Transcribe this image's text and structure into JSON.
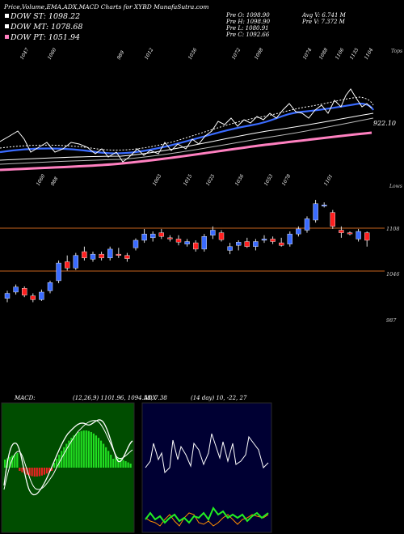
{
  "header": {
    "title": "Price,Volume,EMA,ADX,MACD Charts for XYBD MunafaSutra.com",
    "legend": [
      {
        "label": "DOW ST: 1098.22",
        "color": "#ffffff"
      },
      {
        "label": "DOW MT: 1078.68",
        "color": "#ffffff"
      },
      {
        "label": "DOW PT: 1051.94",
        "color": "#ff80c0"
      }
    ],
    "ohlc": [
      "Pre  O: 1098.90",
      "Pre  H: 1098.90",
      "Pre  L: 1080.91",
      "Pre  C: 1092.66"
    ],
    "stats": [
      "Avg V: 6.741  M",
      "Pre  V: 7.372  M"
    ]
  },
  "ema_panel": {
    "top_label": "Tops",
    "bottom_label": "Lows",
    "value_label": "922.10",
    "top_ticks": [
      "1047",
      "1060",
      "989",
      "1012",
      "1036",
      "1072",
      "1098",
      "1074",
      "1088",
      "1106",
      "1135",
      "1104"
    ],
    "low_ticks": [
      "1060",
      "988",
      "1003",
      "1015",
      "1025",
      "1036",
      "1053",
      "1078",
      "1101"
    ]
  },
  "price_panel": {
    "levels": [
      "1108",
      "1046",
      "987"
    ]
  },
  "macd_panel": {
    "title": "MACD:",
    "values": "(12,26,9) 1101.96,  1094.58,  7.38"
  },
  "adx_panel": {
    "title": "ADX",
    "values": "(14  day) 10,  -22,  27"
  },
  "colors": {
    "up": "#3a6bff",
    "down": "#ff2020",
    "ema_short": "#3a6bff",
    "ema_long": "#ff80c0",
    "level_line": "#c8641e",
    "macd_bg": "#004d00",
    "adx_bg": "#000033",
    "macd_hist_up": "#22dd22",
    "macd_hist_down": "#ee2222"
  },
  "chart_data": {
    "type": "candlestick",
    "candles": [
      {
        "o": 1000,
        "h": 1012,
        "l": 994,
        "c": 1008
      },
      {
        "o": 1010,
        "h": 1022,
        "l": 1006,
        "c": 1018
      },
      {
        "o": 1016,
        "h": 1019,
        "l": 1002,
        "c": 1005
      },
      {
        "o": 1004,
        "h": 1008,
        "l": 994,
        "c": 998
      },
      {
        "o": 998,
        "h": 1014,
        "l": 996,
        "c": 1010
      },
      {
        "o": 1012,
        "h": 1028,
        "l": 1008,
        "c": 1025
      },
      {
        "o": 1028,
        "h": 1060,
        "l": 1024,
        "c": 1056
      },
      {
        "o": 1058,
        "h": 1068,
        "l": 1044,
        "c": 1048
      },
      {
        "o": 1048,
        "h": 1072,
        "l": 1045,
        "c": 1068
      },
      {
        "o": 1074,
        "h": 1082,
        "l": 1060,
        "c": 1064
      },
      {
        "o": 1062,
        "h": 1074,
        "l": 1058,
        "c": 1070
      },
      {
        "o": 1070,
        "h": 1074,
        "l": 1060,
        "c": 1064
      },
      {
        "o": 1064,
        "h": 1082,
        "l": 1060,
        "c": 1078
      },
      {
        "o": 1070,
        "h": 1080,
        "l": 1064,
        "c": 1068
      },
      {
        "o": 1068,
        "h": 1072,
        "l": 1058,
        "c": 1063
      },
      {
        "o": 1080,
        "h": 1095,
        "l": 1076,
        "c": 1092
      },
      {
        "o": 1092,
        "h": 1110,
        "l": 1088,
        "c": 1102
      },
      {
        "o": 1096,
        "h": 1106,
        "l": 1090,
        "c": 1102
      },
      {
        "o": 1104,
        "h": 1110,
        "l": 1094,
        "c": 1098
      },
      {
        "o": 1096,
        "h": 1100,
        "l": 1090,
        "c": 1094
      },
      {
        "o": 1094,
        "h": 1100,
        "l": 1084,
        "c": 1089
      },
      {
        "o": 1086,
        "h": 1094,
        "l": 1082,
        "c": 1090
      },
      {
        "o": 1088,
        "h": 1092,
        "l": 1074,
        "c": 1078
      },
      {
        "o": 1078,
        "h": 1102,
        "l": 1074,
        "c": 1098
      },
      {
        "o": 1100,
        "h": 1114,
        "l": 1094,
        "c": 1108
      },
      {
        "o": 1104,
        "h": 1108,
        "l": 1090,
        "c": 1093
      },
      {
        "o": 1076,
        "h": 1088,
        "l": 1070,
        "c": 1082
      },
      {
        "o": 1084,
        "h": 1092,
        "l": 1076,
        "c": 1089
      },
      {
        "o": 1090,
        "h": 1096,
        "l": 1080,
        "c": 1082
      },
      {
        "o": 1082,
        "h": 1094,
        "l": 1076,
        "c": 1090
      },
      {
        "o": 1092,
        "h": 1100,
        "l": 1088,
        "c": 1094
      },
      {
        "o": 1094,
        "h": 1098,
        "l": 1086,
        "c": 1090
      },
      {
        "o": 1088,
        "h": 1096,
        "l": 1082,
        "c": 1084
      },
      {
        "o": 1086,
        "h": 1106,
        "l": 1082,
        "c": 1102
      },
      {
        "o": 1102,
        "h": 1114,
        "l": 1098,
        "c": 1110
      },
      {
        "o": 1108,
        "h": 1130,
        "l": 1104,
        "c": 1126
      },
      {
        "o": 1124,
        "h": 1156,
        "l": 1120,
        "c": 1150
      },
      {
        "o": 1146,
        "h": 1152,
        "l": 1144,
        "c": 1148
      },
      {
        "o": 1136,
        "h": 1140,
        "l": 1110,
        "c": 1114
      },
      {
        "o": 1108,
        "h": 1114,
        "l": 1096,
        "c": 1104
      },
      {
        "o": 1104,
        "h": 1106,
        "l": 1100,
        "c": 1103
      },
      {
        "o": 1094,
        "h": 1110,
        "l": 1090,
        "c": 1106
      },
      {
        "o": 1104,
        "h": 1106,
        "l": 1082,
        "c": 1092
      }
    ]
  }
}
